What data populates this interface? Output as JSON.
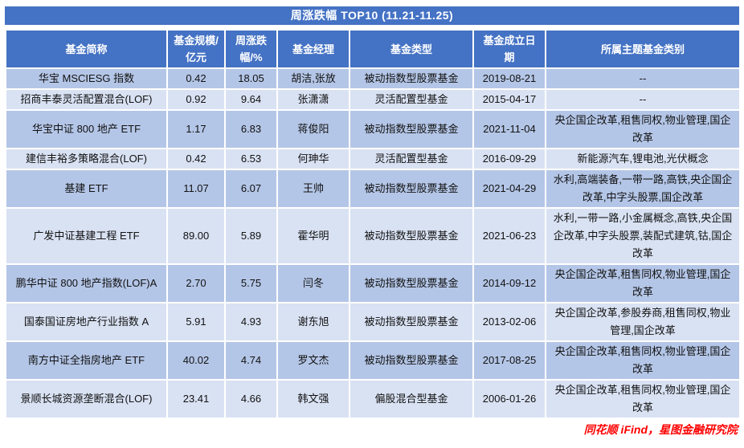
{
  "title": "周涨跌幅 TOP10 (11.21-11.25)",
  "colors": {
    "header_bg": "#4472C4",
    "header_text": "#FFFFFF",
    "row_odd_bg": "#B4C6E7",
    "row_even_bg": "#D9E2F3",
    "cell_text": "#111111",
    "source_text": "#FF0000"
  },
  "table": {
    "columns": [
      "基金简称",
      "基金规模/亿元",
      "周涨跌幅/%",
      "基金经理",
      "基金类型",
      "基金成立日期",
      "所属主题基金类别"
    ],
    "rows": [
      [
        "华宝 MSCIESG 指数",
        "0.42",
        "18.05",
        "胡洁,张放",
        "被动指数型股票基金",
        "2019-08-21",
        "--"
      ],
      [
        "招商丰泰灵活配置混合(LOF)",
        "0.92",
        "9.64",
        "张潇潇",
        "灵活配置型基金",
        "2015-04-17",
        "--"
      ],
      [
        "华宝中证 800 地产 ETF",
        "1.17",
        "6.83",
        "蒋俊阳",
        "被动指数型股票基金",
        "2021-11-04",
        "央企国企改革,租售同权,物业管理,国企改革"
      ],
      [
        "建信丰裕多策略混合(LOF)",
        "0.42",
        "6.53",
        "何珅华",
        "灵活配置型基金",
        "2016-09-29",
        "新能源汽车,锂电池,光伏概念"
      ],
      [
        "基建 ETF",
        "11.07",
        "6.07",
        "王帅",
        "被动指数型股票基金",
        "2021-04-29",
        "水利,高端装备,一带一路,高铁,央企国企改革,中字头股票,国企改革"
      ],
      [
        "广发中证基建工程 ETF",
        "89.00",
        "5.89",
        "霍华明",
        "被动指数型股票基金",
        "2021-06-23",
        "水利,一带一路,小金属概念,高铁,央企国企改革,中字头股票,装配式建筑,钴,国企改革"
      ],
      [
        "鹏华中证 800 地产指数(LOF)A",
        "2.70",
        "5.75",
        "闫冬",
        "被动指数型股票基金",
        "2014-09-12",
        "央企国企改革,租售同权,物业管理,国企改革"
      ],
      [
        "国泰国证房地产行业指数 A",
        "5.91",
        "4.93",
        "谢东旭",
        "被动指数型股票基金",
        "2013-02-06",
        "央企国企改革,参股券商,租售同权,物业管理,国企改革"
      ],
      [
        "南方中证全指房地产 ETF",
        "40.02",
        "4.74",
        "罗文杰",
        "被动指数型股票基金",
        "2017-08-25",
        "央企国企改革,租售同权,物业管理,国企改革"
      ],
      [
        "景顺长城资源垄断混合(LOF)",
        "23.41",
        "4.66",
        "韩文强",
        "偏股混合型基金",
        "2006-01-26",
        "央企国企改革,租售同权,物业管理,国企改革"
      ]
    ]
  },
  "footer": {
    "source": "同花顺 iFind，星图金融研究院"
  }
}
